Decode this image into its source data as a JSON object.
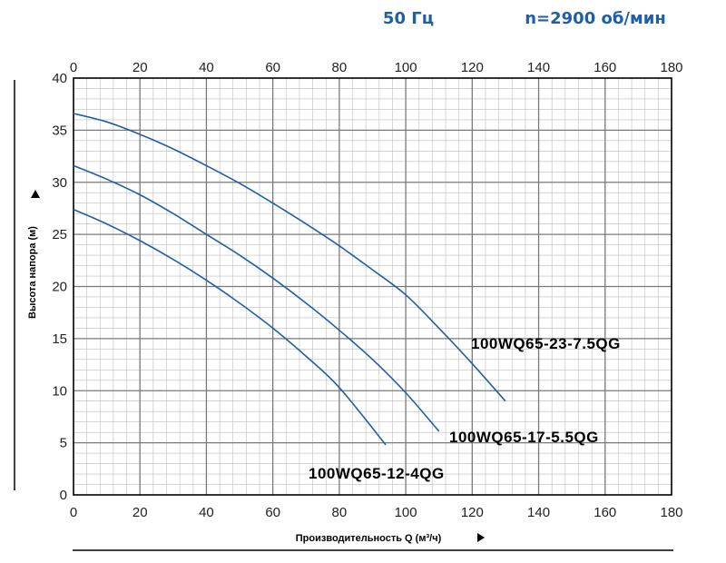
{
  "header": {
    "frequency": "50 Гц",
    "speed": "n=2900 об/мин"
  },
  "chart_data": {
    "type": "line",
    "xlabel": "Производительность Q (м³/ч)",
    "ylabel": "Высота напора (м)",
    "xlim": [
      0,
      180
    ],
    "ylim": [
      0,
      40
    ],
    "x_ticks": [
      "0",
      "20",
      "40",
      "60",
      "80",
      "100",
      "120",
      "140",
      "160",
      "180"
    ],
    "y_ticks": [
      "0",
      "5",
      "10",
      "15",
      "20",
      "25",
      "30",
      "35",
      "40"
    ],
    "grid": true,
    "x_minor_step": 4,
    "y_minor_step": 1,
    "series": [
      {
        "name": "100WQ65-23-7.5QG",
        "x": [
          0,
          10,
          20,
          30,
          40,
          50,
          60,
          70,
          80,
          90,
          100,
          110,
          120,
          130
        ],
        "y": [
          36.6,
          35.8,
          34.6,
          33.2,
          31.6,
          29.9,
          28.0,
          26.0,
          23.9,
          21.6,
          19.2,
          16.0,
          12.6,
          9.0
        ],
        "color": "#1f5fa8"
      },
      {
        "name": "100WQ65-17-5.5QG",
        "x": [
          0,
          10,
          20,
          30,
          40,
          50,
          60,
          70,
          80,
          90,
          100,
          110
        ],
        "y": [
          31.6,
          30.3,
          28.8,
          27.0,
          25.0,
          23.0,
          20.8,
          18.4,
          15.8,
          13.0,
          9.8,
          6.1
        ],
        "color": "#1f5fa8"
      },
      {
        "name": "100WQ65-12-4QG",
        "x": [
          0,
          10,
          20,
          30,
          40,
          50,
          60,
          70,
          80,
          94
        ],
        "y": [
          27.4,
          26.0,
          24.4,
          22.6,
          20.6,
          18.4,
          16.0,
          13.3,
          10.3,
          4.8
        ],
        "color": "#1f5fa8"
      }
    ]
  }
}
